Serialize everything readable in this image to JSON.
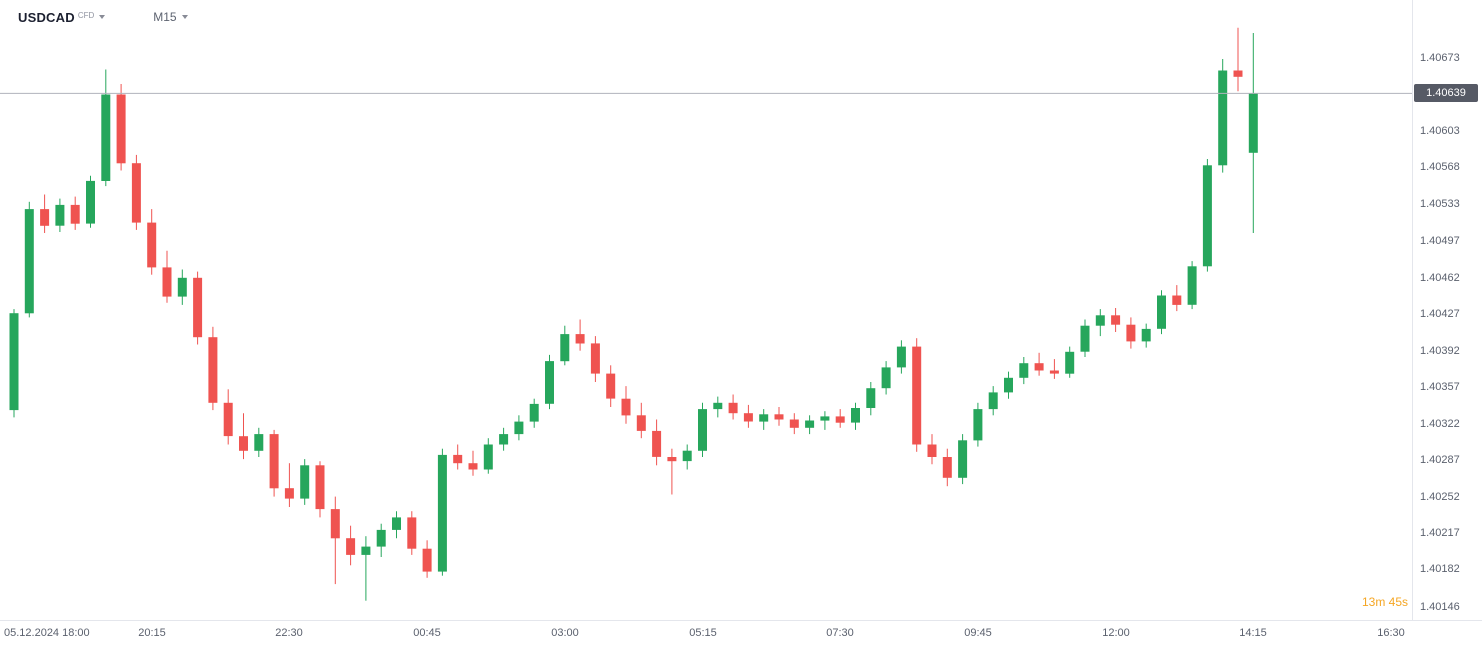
{
  "header": {
    "symbol": "USDCAD",
    "market_type": "CFD",
    "timeframe": "M15"
  },
  "price_axis": {
    "current_price": "1.40639",
    "labels": [
      "1.40673",
      "1.40603",
      "1.40568",
      "1.40533",
      "1.40497",
      "1.40462",
      "1.40427",
      "1.40392",
      "1.40357",
      "1.40322",
      "1.40287",
      "1.40252",
      "1.40217",
      "1.40182",
      "1.40146"
    ]
  },
  "time_axis": {
    "ticks": [
      {
        "label": "05.12.2024 18:00",
        "bar": 0
      },
      {
        "label": "20:15",
        "bar": 9
      },
      {
        "label": "22:30",
        "bar": 18
      },
      {
        "label": "00:45",
        "bar": 27
      },
      {
        "label": "03:00",
        "bar": 36
      },
      {
        "label": "05:15",
        "bar": 45
      },
      {
        "label": "07:30",
        "bar": 54
      },
      {
        "label": "09:45",
        "bar": 63
      },
      {
        "label": "12:00",
        "bar": 72
      },
      {
        "label": "14:15",
        "bar": 81
      },
      {
        "label": "16:30",
        "bar": 90
      }
    ]
  },
  "countdown": "13m 45s",
  "colors": {
    "up": "#26a65c",
    "down": "#ef5350",
    "price_line": "#b0b3bb",
    "badge_bg": "#565a65",
    "axis_text": "#5b616e",
    "countdown": "#f5a623"
  },
  "chart_data": {
    "type": "candlestick",
    "symbol": "USDCAD",
    "interval": "M15",
    "title": "USDCAD CFD M15",
    "axis": {
      "price_min": 1.40146,
      "price_max": 1.40673,
      "grid": false
    },
    "current_price": 1.40639,
    "candle_format": [
      "time",
      "open",
      "high",
      "low",
      "close"
    ],
    "candles": [
      [
        "18:00",
        1.40335,
        1.40432,
        1.40328,
        1.40428
      ],
      [
        "18:15",
        1.40428,
        1.40535,
        1.40424,
        1.40528
      ],
      [
        "18:30",
        1.40528,
        1.40542,
        1.40505,
        1.40512
      ],
      [
        "18:45",
        1.40512,
        1.40538,
        1.40506,
        1.40532
      ],
      [
        "19:00",
        1.40532,
        1.4054,
        1.40508,
        1.40514
      ],
      [
        "19:15",
        1.40514,
        1.4056,
        1.4051,
        1.40555
      ],
      [
        "19:30",
        1.40555,
        1.40662,
        1.4055,
        1.40638
      ],
      [
        "19:45",
        1.40638,
        1.40648,
        1.40565,
        1.40572
      ],
      [
        "20:00",
        1.40572,
        1.4058,
        1.40508,
        1.40515
      ],
      [
        "20:15",
        1.40515,
        1.40528,
        1.40465,
        1.40472
      ],
      [
        "20:30",
        1.40472,
        1.40488,
        1.40438,
        1.40444
      ],
      [
        "20:45",
        1.40444,
        1.4047,
        1.40436,
        1.40462
      ],
      [
        "21:00",
        1.40462,
        1.40468,
        1.40398,
        1.40405
      ],
      [
        "21:15",
        1.40405,
        1.40415,
        1.40335,
        1.40342
      ],
      [
        "21:30",
        1.40342,
        1.40355,
        1.40302,
        1.4031
      ],
      [
        "21:45",
        1.4031,
        1.40332,
        1.40288,
        1.40296
      ],
      [
        "22:00",
        1.40296,
        1.40318,
        1.4029,
        1.40312
      ],
      [
        "22:15",
        1.40312,
        1.40316,
        1.40252,
        1.4026
      ],
      [
        "22:30",
        1.4026,
        1.40284,
        1.40242,
        1.4025
      ],
      [
        "22:45",
        1.4025,
        1.40288,
        1.40244,
        1.40282
      ],
      [
        "23:00",
        1.40282,
        1.40286,
        1.40232,
        1.4024
      ],
      [
        "23:15",
        1.4024,
        1.40252,
        1.40168,
        1.40212
      ],
      [
        "23:30",
        1.40212,
        1.40224,
        1.40186,
        1.40196
      ],
      [
        "23:45",
        1.40196,
        1.40214,
        1.40152,
        1.40204
      ],
      [
        "00:00",
        1.40204,
        1.40226,
        1.40194,
        1.4022
      ],
      [
        "00:15",
        1.4022,
        1.40238,
        1.40212,
        1.40232
      ],
      [
        "00:30",
        1.40232,
        1.40238,
        1.40196,
        1.40202
      ],
      [
        "00:45",
        1.40202,
        1.4021,
        1.40174,
        1.4018
      ],
      [
        "01:00",
        1.4018,
        1.40298,
        1.40176,
        1.40292
      ],
      [
        "01:15",
        1.40292,
        1.40302,
        1.40278,
        1.40284
      ],
      [
        "01:30",
        1.40284,
        1.40296,
        1.40272,
        1.40278
      ],
      [
        "01:45",
        1.40278,
        1.40308,
        1.40274,
        1.40302
      ],
      [
        "02:00",
        1.40302,
        1.40318,
        1.40296,
        1.40312
      ],
      [
        "02:15",
        1.40312,
        1.4033,
        1.40306,
        1.40324
      ],
      [
        "02:30",
        1.40324,
        1.40346,
        1.40318,
        1.40341
      ],
      [
        "02:45",
        1.40341,
        1.40388,
        1.40336,
        1.40382
      ],
      [
        "03:00",
        1.40382,
        1.40416,
        1.40378,
        1.40408
      ],
      [
        "03:15",
        1.40408,
        1.40422,
        1.40392,
        1.40399
      ],
      [
        "03:30",
        1.40399,
        1.40406,
        1.40362,
        1.4037
      ],
      [
        "03:45",
        1.4037,
        1.40378,
        1.40338,
        1.40346
      ],
      [
        "04:00",
        1.40346,
        1.40358,
        1.40322,
        1.4033
      ],
      [
        "04:15",
        1.4033,
        1.40342,
        1.40308,
        1.40315
      ],
      [
        "04:30",
        1.40315,
        1.40326,
        1.40282,
        1.4029
      ],
      [
        "04:45",
        1.4029,
        1.40298,
        1.40254,
        1.40286
      ],
      [
        "05:00",
        1.40286,
        1.40302,
        1.40278,
        1.40296
      ],
      [
        "05:15",
        1.40296,
        1.40342,
        1.4029,
        1.40336
      ],
      [
        "05:30",
        1.40336,
        1.40348,
        1.40328,
        1.40342
      ],
      [
        "05:45",
        1.40342,
        1.4035,
        1.40326,
        1.40332
      ],
      [
        "06:00",
        1.40332,
        1.4034,
        1.40318,
        1.40324
      ],
      [
        "06:15",
        1.40324,
        1.40336,
        1.40316,
        1.40331
      ],
      [
        "06:30",
        1.40331,
        1.40338,
        1.4032,
        1.40326
      ],
      [
        "06:45",
        1.40326,
        1.40332,
        1.40312,
        1.40318
      ],
      [
        "07:00",
        1.40318,
        1.4033,
        1.40312,
        1.40325
      ],
      [
        "07:15",
        1.40325,
        1.40334,
        1.40316,
        1.40329
      ],
      [
        "07:30",
        1.40329,
        1.40336,
        1.40318,
        1.40323
      ],
      [
        "07:45",
        1.40323,
        1.40342,
        1.40316,
        1.40337
      ],
      [
        "08:00",
        1.40337,
        1.40362,
        1.4033,
        1.40356
      ],
      [
        "08:15",
        1.40356,
        1.40382,
        1.4035,
        1.40376
      ],
      [
        "08:30",
        1.40376,
        1.40402,
        1.4037,
        1.40396
      ],
      [
        "08:45",
        1.40396,
        1.40404,
        1.40295,
        1.40302
      ],
      [
        "09:00",
        1.40302,
        1.40312,
        1.40283,
        1.4029
      ],
      [
        "09:15",
        1.4029,
        1.40298,
        1.40262,
        1.4027
      ],
      [
        "09:30",
        1.4027,
        1.40312,
        1.40264,
        1.40306
      ],
      [
        "09:45",
        1.40306,
        1.40342,
        1.403,
        1.40336
      ],
      [
        "10:00",
        1.40336,
        1.40358,
        1.4033,
        1.40352
      ],
      [
        "10:15",
        1.40352,
        1.40372,
        1.40346,
        1.40366
      ],
      [
        "10:30",
        1.40366,
        1.40386,
        1.4036,
        1.4038
      ],
      [
        "10:45",
        1.4038,
        1.4039,
        1.40368,
        1.40373
      ],
      [
        "11:00",
        1.40373,
        1.40384,
        1.40365,
        1.4037
      ],
      [
        "11:15",
        1.4037,
        1.40396,
        1.40366,
        1.40391
      ],
      [
        "11:30",
        1.40391,
        1.40422,
        1.40386,
        1.40416
      ],
      [
        "11:45",
        1.40416,
        1.40432,
        1.40406,
        1.40426
      ],
      [
        "12:00",
        1.40426,
        1.40433,
        1.4041,
        1.40417
      ],
      [
        "12:15",
        1.40417,
        1.40424,
        1.40394,
        1.40401
      ],
      [
        "12:30",
        1.40401,
        1.40418,
        1.40395,
        1.40413
      ],
      [
        "12:45",
        1.40413,
        1.4045,
        1.40408,
        1.40445
      ],
      [
        "13:00",
        1.40445,
        1.40455,
        1.4043,
        1.40436
      ],
      [
        "13:15",
        1.40436,
        1.40478,
        1.40432,
        1.40473
      ],
      [
        "13:30",
        1.40473,
        1.40576,
        1.40468,
        1.4057
      ],
      [
        "13:45",
        1.4057,
        1.40672,
        1.40563,
        1.40661
      ],
      [
        "14:00",
        1.40661,
        1.40702,
        1.40641,
        1.40655
      ],
      [
        "14:15",
        1.40582,
        1.40697,
        1.40505,
        1.40639
      ]
    ]
  }
}
